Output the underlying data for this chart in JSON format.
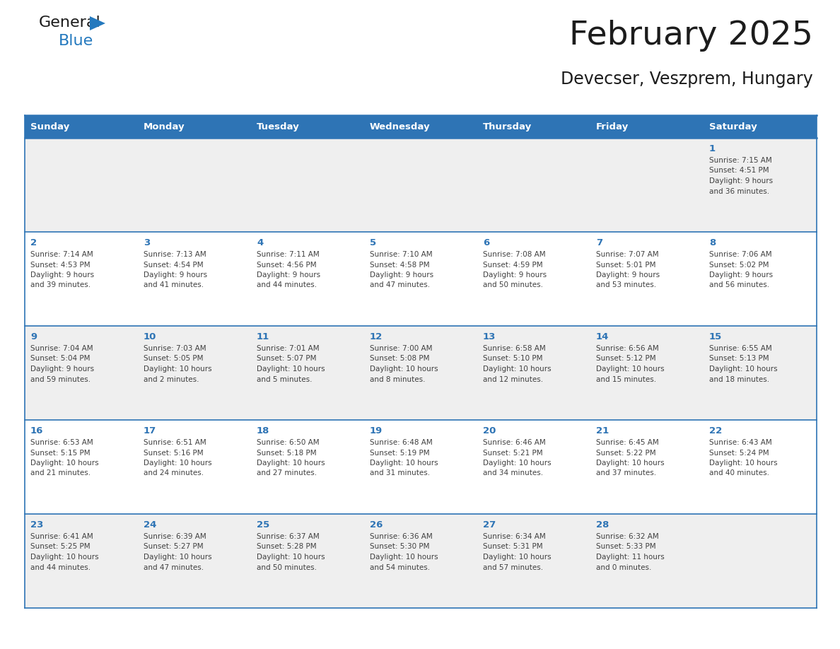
{
  "title": "February 2025",
  "subtitle": "Devecser, Veszprem, Hungary",
  "header_bg": "#2E74B5",
  "header_text_color": "#FFFFFF",
  "day_names": [
    "Sunday",
    "Monday",
    "Tuesday",
    "Wednesday",
    "Thursday",
    "Friday",
    "Saturday"
  ],
  "row_bg_odd": "#EFEFEF",
  "row_bg_even": "#FFFFFF",
  "cell_border_color": "#2E74B5",
  "day_number_color": "#2E74B5",
  "info_text_color": "#404040",
  "logo_general_color": "#1A1A1A",
  "logo_blue_color": "#2479BE",
  "calendar_data": [
    [
      null,
      null,
      null,
      null,
      null,
      null,
      {
        "day": 1,
        "sunrise": "7:15 AM",
        "sunset": "4:51 PM",
        "daylight": "9 hours and 36 minutes."
      }
    ],
    [
      {
        "day": 2,
        "sunrise": "7:14 AM",
        "sunset": "4:53 PM",
        "daylight": "9 hours and 39 minutes."
      },
      {
        "day": 3,
        "sunrise": "7:13 AM",
        "sunset": "4:54 PM",
        "daylight": "9 hours and 41 minutes."
      },
      {
        "day": 4,
        "sunrise": "7:11 AM",
        "sunset": "4:56 PM",
        "daylight": "9 hours and 44 minutes."
      },
      {
        "day": 5,
        "sunrise": "7:10 AM",
        "sunset": "4:58 PM",
        "daylight": "9 hours and 47 minutes."
      },
      {
        "day": 6,
        "sunrise": "7:08 AM",
        "sunset": "4:59 PM",
        "daylight": "9 hours and 50 minutes."
      },
      {
        "day": 7,
        "sunrise": "7:07 AM",
        "sunset": "5:01 PM",
        "daylight": "9 hours and 53 minutes."
      },
      {
        "day": 8,
        "sunrise": "7:06 AM",
        "sunset": "5:02 PM",
        "daylight": "9 hours and 56 minutes."
      }
    ],
    [
      {
        "day": 9,
        "sunrise": "7:04 AM",
        "sunset": "5:04 PM",
        "daylight": "9 hours and 59 minutes."
      },
      {
        "day": 10,
        "sunrise": "7:03 AM",
        "sunset": "5:05 PM",
        "daylight": "10 hours and 2 minutes."
      },
      {
        "day": 11,
        "sunrise": "7:01 AM",
        "sunset": "5:07 PM",
        "daylight": "10 hours and 5 minutes."
      },
      {
        "day": 12,
        "sunrise": "7:00 AM",
        "sunset": "5:08 PM",
        "daylight": "10 hours and 8 minutes."
      },
      {
        "day": 13,
        "sunrise": "6:58 AM",
        "sunset": "5:10 PM",
        "daylight": "10 hours and 12 minutes."
      },
      {
        "day": 14,
        "sunrise": "6:56 AM",
        "sunset": "5:12 PM",
        "daylight": "10 hours and 15 minutes."
      },
      {
        "day": 15,
        "sunrise": "6:55 AM",
        "sunset": "5:13 PM",
        "daylight": "10 hours and 18 minutes."
      }
    ],
    [
      {
        "day": 16,
        "sunrise": "6:53 AM",
        "sunset": "5:15 PM",
        "daylight": "10 hours and 21 minutes."
      },
      {
        "day": 17,
        "sunrise": "6:51 AM",
        "sunset": "5:16 PM",
        "daylight": "10 hours and 24 minutes."
      },
      {
        "day": 18,
        "sunrise": "6:50 AM",
        "sunset": "5:18 PM",
        "daylight": "10 hours and 27 minutes."
      },
      {
        "day": 19,
        "sunrise": "6:48 AM",
        "sunset": "5:19 PM",
        "daylight": "10 hours and 31 minutes."
      },
      {
        "day": 20,
        "sunrise": "6:46 AM",
        "sunset": "5:21 PM",
        "daylight": "10 hours and 34 minutes."
      },
      {
        "day": 21,
        "sunrise": "6:45 AM",
        "sunset": "5:22 PM",
        "daylight": "10 hours and 37 minutes."
      },
      {
        "day": 22,
        "sunrise": "6:43 AM",
        "sunset": "5:24 PM",
        "daylight": "10 hours and 40 minutes."
      }
    ],
    [
      {
        "day": 23,
        "sunrise": "6:41 AM",
        "sunset": "5:25 PM",
        "daylight": "10 hours and 44 minutes."
      },
      {
        "day": 24,
        "sunrise": "6:39 AM",
        "sunset": "5:27 PM",
        "daylight": "10 hours and 47 minutes."
      },
      {
        "day": 25,
        "sunrise": "6:37 AM",
        "sunset": "5:28 PM",
        "daylight": "10 hours and 50 minutes."
      },
      {
        "day": 26,
        "sunrise": "6:36 AM",
        "sunset": "5:30 PM",
        "daylight": "10 hours and 54 minutes."
      },
      {
        "day": 27,
        "sunrise": "6:34 AM",
        "sunset": "5:31 PM",
        "daylight": "10 hours and 57 minutes."
      },
      {
        "day": 28,
        "sunrise": "6:32 AM",
        "sunset": "5:33 PM",
        "daylight": "11 hours and 0 minutes."
      },
      null
    ]
  ]
}
